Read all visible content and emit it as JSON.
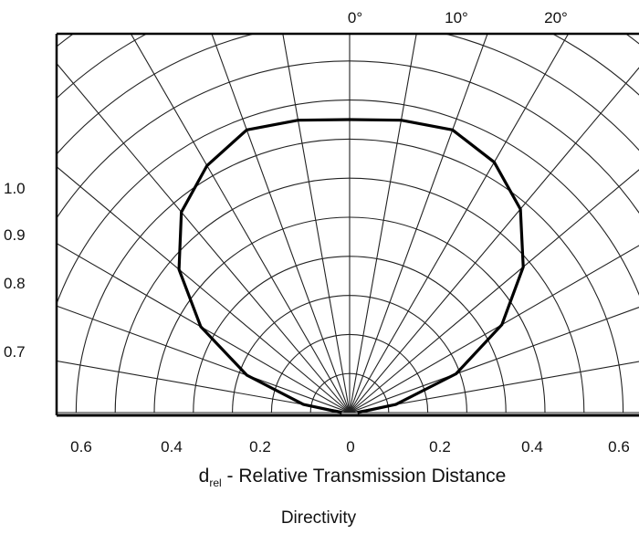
{
  "chart_data": {
    "type": "polar-line",
    "title": "Directivity",
    "xlabel_main": "d",
    "xlabel_sub": "rel",
    "xlabel_rest": " - Relative Transmission Distance",
    "angle_ticks": [
      "0°",
      "10°",
      "20°"
    ],
    "angle_tick_values_deg": [
      0,
      10,
      20
    ],
    "radial_ticks": [
      "1.0",
      "0.9",
      "0.8",
      "0.7"
    ],
    "radial_tick_values": [
      1.0,
      0.9,
      0.8,
      0.7
    ],
    "x_ticks": [
      "0.6",
      "0.4",
      "0.2",
      "0",
      "0.2",
      "0.4",
      "0.6"
    ],
    "x_tick_values": [
      -0.6,
      -0.4,
      -0.2,
      0,
      0.2,
      0.4,
      0.6
    ],
    "grid": true,
    "ray_step_deg": 10,
    "ring_step": 0.1,
    "series": [
      {
        "angle_deg": [
          -90,
          -80,
          -70,
          -60,
          -50,
          -40,
          -30,
          -20,
          -10,
          0,
          10,
          20,
          30,
          40,
          50,
          60,
          70,
          80,
          90
        ],
        "d_rel": [
          0.02,
          0.12,
          0.28,
          0.44,
          0.57,
          0.67,
          0.73,
          0.77,
          0.76,
          0.75,
          0.76,
          0.77,
          0.74,
          0.68,
          0.58,
          0.45,
          0.29,
          0.12,
          0.02
        ]
      }
    ]
  }
}
